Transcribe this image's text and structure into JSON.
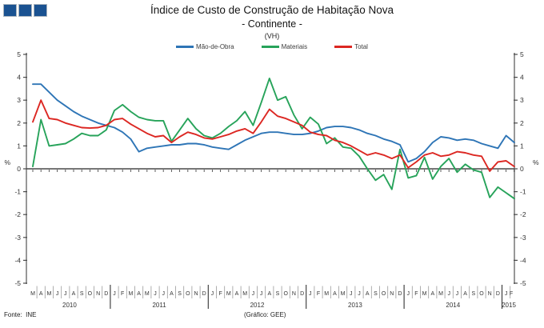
{
  "logo": {
    "square_count": 3,
    "color": "#1a5291",
    "border_color": "#aab4bd"
  },
  "header": {
    "title": "Índice de Custo de Construção de Habitação Nova",
    "subtitle": "- Continente -",
    "unit_note": "(VH)"
  },
  "footer": {
    "source": "Fonte:  INE",
    "credit": "(Gráfico: GEE)"
  },
  "chart_data": {
    "type": "line",
    "title": "Índice de Custo de Construção de Habitação Nova - Continente (VH)",
    "ylabel": "%",
    "percent_label": "%",
    "ylim": [
      -5,
      5
    ],
    "y_ticks": [
      5,
      4,
      3,
      2,
      1,
      0,
      -1,
      -2,
      -3,
      -4,
      -5
    ],
    "grid": false,
    "legend_position": "top",
    "axis_color": "#8c8c8c",
    "zero_line_color": "#4a4a4a",
    "x_month_labels": [
      "M",
      "A",
      "M",
      "J",
      "J",
      "A",
      "S",
      "O",
      "N",
      "D",
      "J",
      "F",
      "M",
      "A",
      "M",
      "J",
      "J",
      "A",
      "S",
      "O",
      "N",
      "D",
      "J",
      "F",
      "M",
      "A",
      "M",
      "J",
      "J",
      "A",
      "S",
      "O",
      "N",
      "D",
      "J",
      "F",
      "M",
      "A",
      "M",
      "J",
      "J",
      "A",
      "S",
      "O",
      "N",
      "D",
      "J",
      "F",
      "M",
      "A",
      "M",
      "J",
      "J",
      "A",
      "S",
      "O",
      "N",
      "D",
      "J",
      "F"
    ],
    "year_groups": [
      {
        "label": "2010",
        "months": 10
      },
      {
        "label": "2011",
        "months": 12
      },
      {
        "label": "2012",
        "months": 12
      },
      {
        "label": "2013",
        "months": 12
      },
      {
        "label": "2014",
        "months": 12
      },
      {
        "label": "2015",
        "months": 2
      }
    ],
    "series": [
      {
        "name": "Mão-de-Obra",
        "color": "#2e75b6",
        "values": [
          3.7,
          3.7,
          3.35,
          3.0,
          2.75,
          2.5,
          2.3,
          2.15,
          2.0,
          1.9,
          1.8,
          1.6,
          1.3,
          0.75,
          0.9,
          0.95,
          1.0,
          1.05,
          1.05,
          1.1,
          1.1,
          1.05,
          0.95,
          0.9,
          0.85,
          1.05,
          1.25,
          1.4,
          1.55,
          1.6,
          1.6,
          1.55,
          1.5,
          1.5,
          1.55,
          1.65,
          1.8,
          1.85,
          1.85,
          1.8,
          1.7,
          1.55,
          1.45,
          1.3,
          1.2,
          1.05,
          0.3,
          0.45,
          0.75,
          1.15,
          1.4,
          1.35,
          1.25,
          1.3,
          1.25,
          1.1,
          1.0,
          0.9,
          1.45,
          1.15
        ]
      },
      {
        "name": "Materiais",
        "color": "#27a35a",
        "values": [
          0.1,
          2.15,
          1.0,
          1.05,
          1.1,
          1.3,
          1.55,
          1.45,
          1.45,
          1.7,
          2.55,
          2.8,
          2.5,
          2.25,
          2.15,
          2.1,
          2.1,
          1.2,
          1.7,
          2.2,
          1.75,
          1.45,
          1.35,
          1.55,
          1.85,
          2.1,
          2.5,
          1.9,
          2.9,
          3.95,
          3.0,
          3.15,
          2.35,
          1.75,
          2.25,
          1.95,
          1.1,
          1.35,
          0.95,
          0.9,
          0.55,
          0.0,
          -0.5,
          -0.25,
          -0.9,
          0.85,
          -0.4,
          -0.3,
          0.5,
          -0.45,
          0.1,
          0.45,
          -0.15,
          0.2,
          -0.05,
          -0.15,
          -1.25,
          -0.8,
          -1.05,
          -1.3
        ]
      },
      {
        "name": "Total",
        "color": "#dc2722",
        "values": [
          2.05,
          3.0,
          2.2,
          2.15,
          2.0,
          1.9,
          1.8,
          1.78,
          1.8,
          1.9,
          2.15,
          2.2,
          1.95,
          1.75,
          1.55,
          1.4,
          1.45,
          1.15,
          1.4,
          1.6,
          1.5,
          1.35,
          1.3,
          1.4,
          1.5,
          1.65,
          1.75,
          1.55,
          2.05,
          2.6,
          2.3,
          2.2,
          2.05,
          1.9,
          1.6,
          1.5,
          1.45,
          1.25,
          1.15,
          1.0,
          0.8,
          0.6,
          0.7,
          0.6,
          0.45,
          0.6,
          0.05,
          0.3,
          0.6,
          0.7,
          0.55,
          0.6,
          0.75,
          0.7,
          0.6,
          0.55,
          -0.1,
          0.3,
          0.35,
          0.1
        ]
      }
    ]
  }
}
